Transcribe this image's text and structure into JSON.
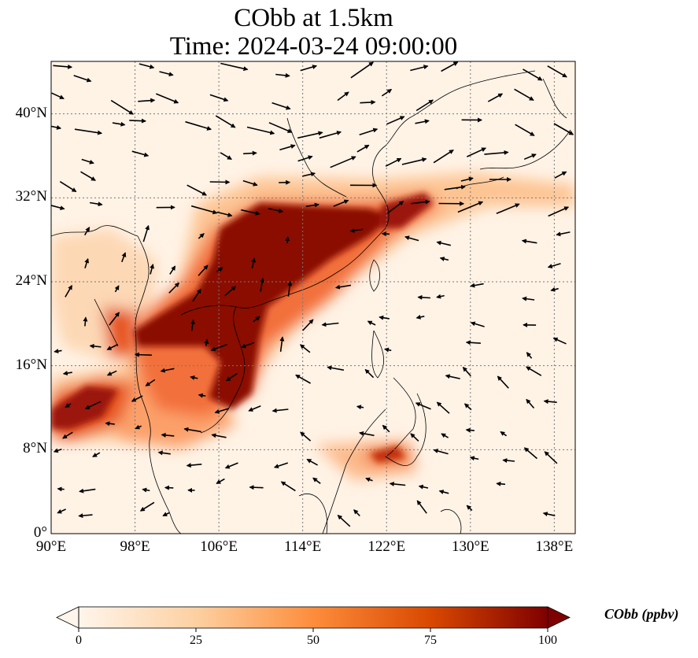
{
  "title": {
    "line1": "CObb at 1.5km",
    "line2": "Time: 2024-03-24 09:00:00"
  },
  "map": {
    "extent": {
      "lon": [
        90,
        140
      ],
      "lat": [
        0,
        45
      ]
    },
    "lon_ticks": [
      {
        "value": 90,
        "label": "90°E"
      },
      {
        "value": 98,
        "label": "98°E"
      },
      {
        "value": 106,
        "label": "106°E"
      },
      {
        "value": 114,
        "label": "114°E"
      },
      {
        "value": 122,
        "label": "122°E"
      },
      {
        "value": 130,
        "label": "130°E"
      },
      {
        "value": 138,
        "label": "138°E"
      }
    ],
    "lat_ticks": [
      {
        "value": 0,
        "label": "0°"
      },
      {
        "value": 8,
        "label": "8°N"
      },
      {
        "value": 16,
        "label": "16°N"
      },
      {
        "value": 24,
        "label": "24°N"
      },
      {
        "value": 32,
        "label": "32°N"
      },
      {
        "value": 40,
        "label": "40°N"
      }
    ],
    "gridlines": true,
    "field": "CObb concentration at 1.5 km (shaded)",
    "overlay": "wind vectors (arrows)"
  },
  "colorbar": {
    "label": "CObb (ppbv)",
    "min": 0,
    "max": 100,
    "ticks": [
      "0",
      "25",
      "50",
      "75",
      "100"
    ],
    "extend": "both",
    "colors": [
      "#fff5eb",
      "#fdd0a2",
      "#fd8d3c",
      "#d94801",
      "#7f0000"
    ]
  }
}
